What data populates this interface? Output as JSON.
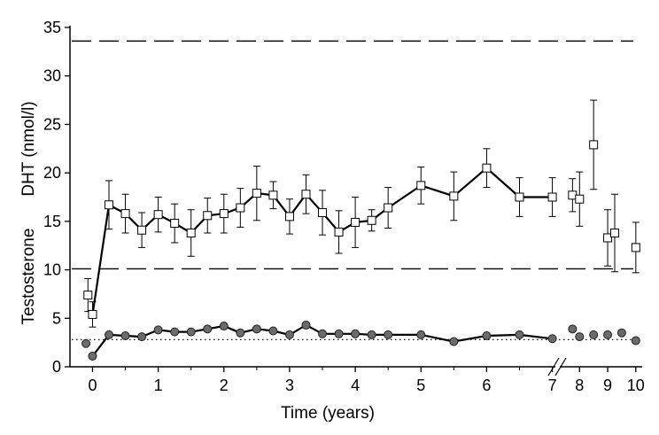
{
  "chart_data": {
    "type": "line",
    "xlabel": "Time (years)",
    "ylabel_top": "DHT (nmol/l)",
    "ylabel_bottom": "Testosterone",
    "ylim": [
      0,
      35
    ],
    "yticks": [
      0,
      5,
      10,
      15,
      20,
      25,
      30,
      35
    ],
    "xticks_main": [
      0,
      1,
      2,
      3,
      4,
      5,
      6,
      7
    ],
    "xticks_after_break": [
      8,
      9,
      10
    ],
    "xlim_main": [
      -0.33,
      7.1
    ],
    "xlim_break": [
      7.55,
      10.1
    ],
    "axis_break_after": 7,
    "reference_lines": [
      {
        "style": "dashed",
        "y": 33.6
      },
      {
        "style": "dashed",
        "y": 10.1
      },
      {
        "style": "dotted",
        "y": 2.8
      }
    ],
    "series": [
      {
        "marker": "open-square",
        "points": [
          {
            "x": -0.07,
            "y": 7.4,
            "err": 1.7,
            "connected": false
          },
          {
            "x": 0.0,
            "y": 5.4,
            "err": 1.3
          },
          {
            "x": 0.25,
            "y": 16.7,
            "err": 2.5
          },
          {
            "x": 0.5,
            "y": 15.8,
            "err": 2.0
          },
          {
            "x": 0.75,
            "y": 14.1,
            "err": 1.8
          },
          {
            "x": 1.0,
            "y": 15.7,
            "err": 1.8
          },
          {
            "x": 1.25,
            "y": 14.8,
            "err": 2.0
          },
          {
            "x": 1.5,
            "y": 13.8,
            "err": 2.4
          },
          {
            "x": 1.75,
            "y": 15.6,
            "err": 1.8
          },
          {
            "x": 2.0,
            "y": 15.8,
            "err": 2.0
          },
          {
            "x": 2.25,
            "y": 16.4,
            "err": 2.0
          },
          {
            "x": 2.5,
            "y": 17.9,
            "err": 2.8
          },
          {
            "x": 2.75,
            "y": 17.7,
            "err": 1.4
          },
          {
            "x": 3.0,
            "y": 15.5,
            "err": 1.8
          },
          {
            "x": 3.25,
            "y": 17.8,
            "err": 2.0
          },
          {
            "x": 3.5,
            "y": 15.9,
            "err": 2.3
          },
          {
            "x": 3.75,
            "y": 13.9,
            "err": 2.2
          },
          {
            "x": 4.0,
            "y": 14.9,
            "err": 2.6
          },
          {
            "x": 4.25,
            "y": 15.1,
            "err": 1.1
          },
          {
            "x": 4.5,
            "y": 16.4,
            "err": 2.1
          },
          {
            "x": 5.0,
            "y": 18.7,
            "err": 1.9
          },
          {
            "x": 5.5,
            "y": 17.6,
            "err": 2.5
          },
          {
            "x": 6.0,
            "y": 20.5,
            "err": 2.0
          },
          {
            "x": 6.5,
            "y": 17.5,
            "err": 2.0
          },
          {
            "x": 7.0,
            "y": 17.5,
            "err": 2.0
          },
          {
            "x": 7.75,
            "y": 17.7,
            "err": 1.7,
            "connected": false
          },
          {
            "x": 8.0,
            "y": 17.3,
            "err": 2.8,
            "connected": false
          },
          {
            "x": 8.5,
            "y": 22.9,
            "err": 4.6,
            "connected": false
          },
          {
            "x": 9.0,
            "y": 13.3,
            "err": 2.9,
            "connected": false
          },
          {
            "x": 9.25,
            "y": 13.8,
            "err": 4.0,
            "connected": false
          },
          {
            "x": 10.0,
            "y": 12.3,
            "err": 2.6,
            "connected": false
          }
        ]
      },
      {
        "marker": "filled-circle",
        "points": [
          {
            "x": -0.1,
            "y": 2.4,
            "connected": false
          },
          {
            "x": 0.0,
            "y": 1.1
          },
          {
            "x": 0.25,
            "y": 3.3
          },
          {
            "x": 0.5,
            "y": 3.2
          },
          {
            "x": 0.75,
            "y": 3.1
          },
          {
            "x": 1.0,
            "y": 3.8
          },
          {
            "x": 1.25,
            "y": 3.6
          },
          {
            "x": 1.5,
            "y": 3.6
          },
          {
            "x": 1.75,
            "y": 3.9
          },
          {
            "x": 2.0,
            "y": 4.2
          },
          {
            "x": 2.25,
            "y": 3.5
          },
          {
            "x": 2.5,
            "y": 3.9
          },
          {
            "x": 2.75,
            "y": 3.7
          },
          {
            "x": 3.0,
            "y": 3.3
          },
          {
            "x": 3.25,
            "y": 4.3
          },
          {
            "x": 3.5,
            "y": 3.4
          },
          {
            "x": 3.75,
            "y": 3.4
          },
          {
            "x": 4.0,
            "y": 3.4
          },
          {
            "x": 4.25,
            "y": 3.3
          },
          {
            "x": 4.5,
            "y": 3.3
          },
          {
            "x": 5.0,
            "y": 3.3
          },
          {
            "x": 5.5,
            "y": 2.6
          },
          {
            "x": 6.0,
            "y": 3.2
          },
          {
            "x": 6.5,
            "y": 3.3
          },
          {
            "x": 7.0,
            "y": 2.9
          },
          {
            "x": 7.75,
            "y": 3.9,
            "connected": false
          },
          {
            "x": 8.0,
            "y": 3.1,
            "connected": false
          },
          {
            "x": 8.5,
            "y": 3.3,
            "connected": false
          },
          {
            "x": 9.0,
            "y": 3.3,
            "connected": false
          },
          {
            "x": 9.5,
            "y": 3.5,
            "connected": false
          },
          {
            "x": 10.0,
            "y": 2.7,
            "connected": false
          }
        ]
      }
    ],
    "grid": false,
    "legend": "none"
  }
}
